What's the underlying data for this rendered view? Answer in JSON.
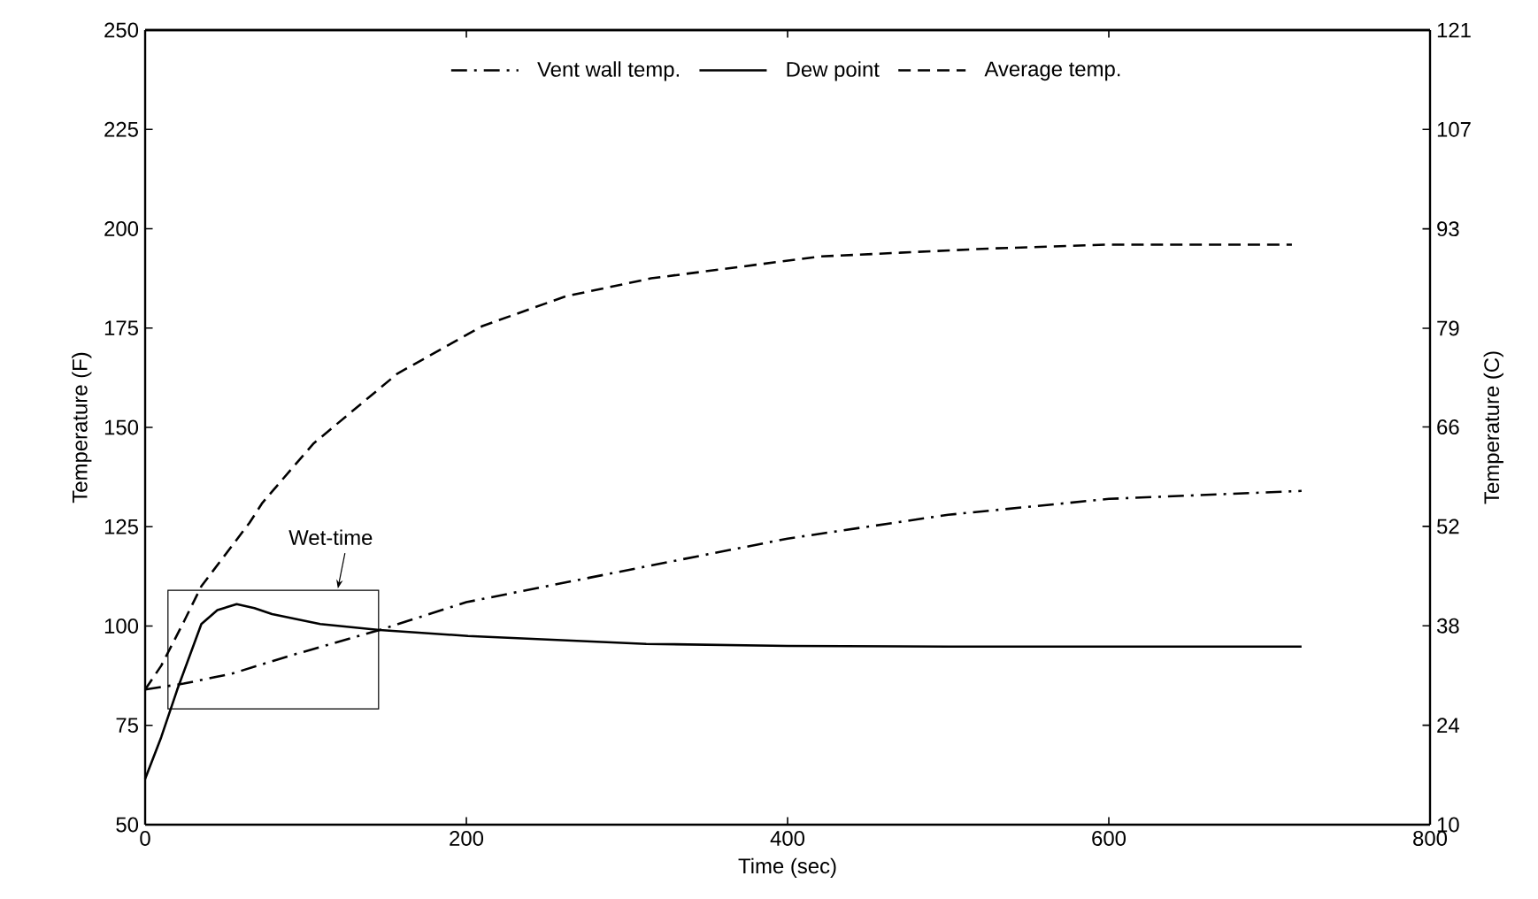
{
  "chart_data": {
    "type": "line",
    "xlabel": "Time (sec)",
    "ylabel": "Temperature (F)",
    "y2label": "Temperature (C)",
    "xlim": [
      0,
      800
    ],
    "xticks": [
      0,
      200,
      400,
      600,
      800
    ],
    "ylim": [
      50,
      250
    ],
    "yticks": [
      50,
      75,
      100,
      125,
      150,
      175,
      200,
      225,
      250
    ],
    "y2lim": [
      10,
      121.1
    ],
    "y2ticks": [
      10,
      {
        "value": 23.9,
        "label": "24"
      },
      {
        "value": 37.8,
        "label": "38"
      },
      {
        "value": 51.7,
        "label": "52"
      },
      {
        "value": 65.6,
        "label": "66"
      },
      {
        "value": 79.4,
        "label": "79"
      },
      {
        "value": 93.3,
        "label": "93"
      },
      {
        "value": 107.2,
        "label": "107"
      },
      {
        "value": 121.1,
        "label": "121"
      }
    ],
    "legend": "top",
    "grid": false,
    "marker": "none",
    "series": [
      {
        "name": "Vent wall temp.",
        "color": "#000000",
        "line_style": "dashdot",
        "x": [
          0,
          24,
          54,
          90,
          146,
          200,
          312,
          400,
          500,
          600,
          720
        ],
        "values": [
          84,
          85.5,
          88,
          92.5,
          99,
          106,
          115,
          122,
          128,
          132,
          134
        ]
      },
      {
        "name": "Dew point",
        "color": "#000000",
        "line_style": "solid",
        "x": [
          0,
          10,
          20,
          35,
          45,
          57,
          68,
          79,
          109,
          146,
          201,
          312,
          400,
          500,
          720
        ],
        "values": [
          61.5,
          72,
          84,
          100.5,
          104,
          105.5,
          104.5,
          103,
          100.5,
          99,
          97.5,
          95.5,
          95,
          94.8,
          94.8
        ]
      },
      {
        "name": "Average temp.",
        "color": "#000000",
        "line_style": "dashed",
        "x": [
          0,
          10,
          24,
          35,
          50,
          65,
          73,
          90,
          105,
          157,
          210,
          262,
          315,
          420,
          525,
          600,
          714
        ],
        "values": [
          84,
          90,
          101,
          110,
          118,
          126,
          131,
          139,
          146,
          163.5,
          175.5,
          183,
          187.5,
          193,
          195,
          196,
          196
        ]
      }
    ],
    "annotations": [
      "Wet-time"
    ]
  }
}
